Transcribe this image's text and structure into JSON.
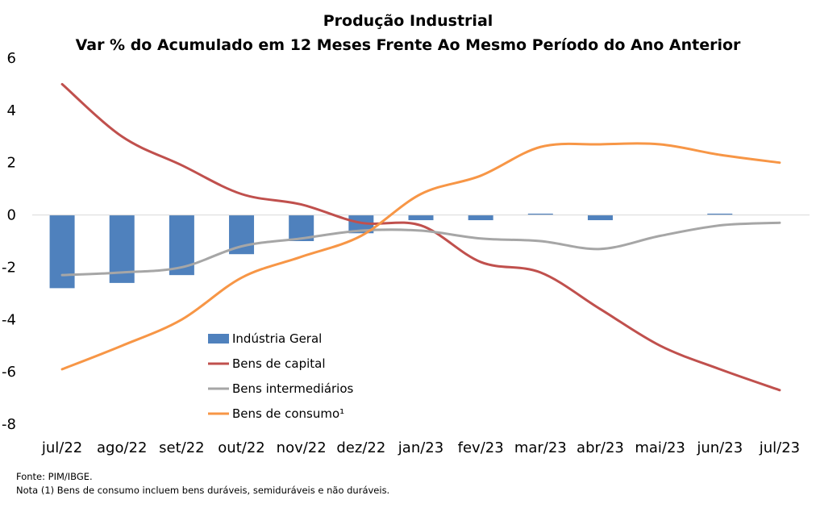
{
  "chart_data": {
    "type": "bar",
    "title": "Produção Industrial",
    "subtitle": "Var % do Acumulado em 12 Meses Frente Ao Mesmo Período do Ano Anterior",
    "categories": [
      "jul/22",
      "ago/22",
      "set/22",
      "out/22",
      "nov/22",
      "dez/22",
      "jan/23",
      "fev/23",
      "mar/23",
      "abr/23",
      "mai/23",
      "jun/23",
      "jul/23"
    ],
    "ylim": [
      -8,
      6
    ],
    "yticks": [
      -8,
      -6,
      -4,
      -2,
      0,
      2,
      4,
      6
    ],
    "grid": false,
    "legend_position": "bottom-center",
    "series": [
      {
        "name": "Indústria Geral",
        "kind": "bar",
        "color": "#4F81BD",
        "values": [
          -2.8,
          -2.6,
          -2.3,
          -1.5,
          -1.0,
          -0.7,
          -0.2,
          -0.2,
          0.05,
          -0.2,
          0.0,
          0.05,
          0.0
        ]
      },
      {
        "name": "Bens de capital",
        "kind": "line",
        "color": "#C0504D",
        "values": [
          5.0,
          3.0,
          1.9,
          0.8,
          0.4,
          -0.3,
          -0.4,
          -1.8,
          -2.2,
          -3.6,
          -5.0,
          -5.9,
          -6.7
        ]
      },
      {
        "name": "Bens intermediários",
        "kind": "line",
        "color": "#A6A6A6",
        "values": [
          -2.3,
          -2.2,
          -2.0,
          -1.2,
          -0.9,
          -0.6,
          -0.6,
          -0.9,
          -1.0,
          -1.3,
          -0.8,
          -0.4,
          -0.3
        ]
      },
      {
        "name": "Bens de consumo¹",
        "kind": "line",
        "color": "#F79646",
        "values": [
          -5.9,
          -5.0,
          -4.0,
          -2.4,
          -1.6,
          -0.8,
          0.8,
          1.5,
          2.6,
          2.7,
          2.7,
          2.3,
          2.0
        ]
      }
    ]
  },
  "footnotes": {
    "source": "Fonte: PIM/IBGE.",
    "note": "Nota (1) Bens de consumo incluem bens duráveis, semiduráveis e não duráveis."
  }
}
